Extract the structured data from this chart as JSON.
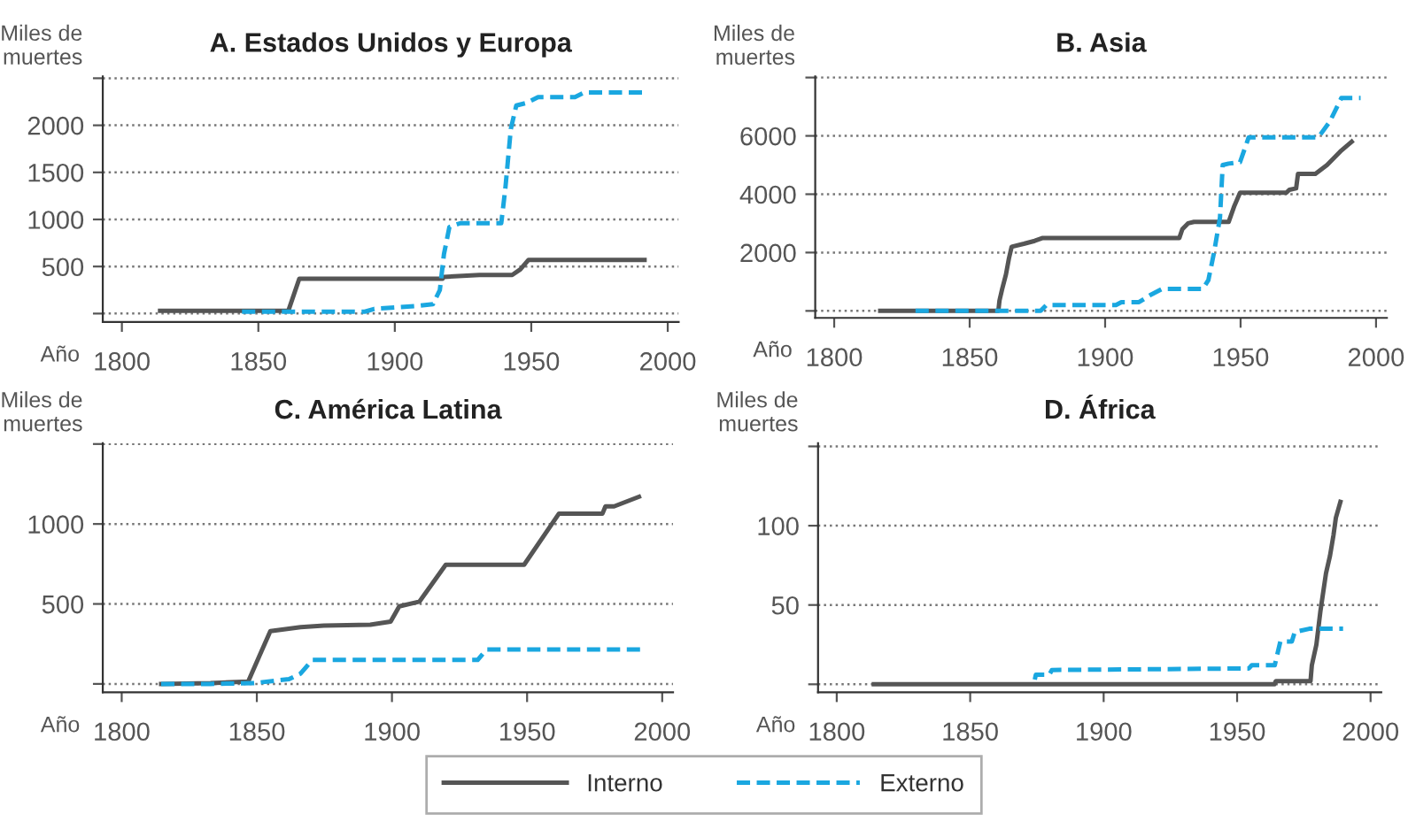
{
  "chart_data": [
    {
      "type": "line",
      "title": "A. Estados Unidos y Europa",
      "xlabel": "Año",
      "ylabel": "Miles de\nmuertes",
      "xlim": [
        1793,
        2004
      ],
      "xticks": [
        1800,
        1850,
        1900,
        1950,
        2000
      ],
      "ylim": [
        -90,
        2520
      ],
      "yticks": [
        {
          "value": 0,
          "label": null
        },
        500,
        1000,
        1500,
        2000,
        {
          "value": 2500,
          "label": null
        }
      ],
      "grid": "y",
      "legend": "bottom",
      "series": [
        {
          "name": "Interno",
          "color": "#555555",
          "line_style": "solid",
          "x": [
            1814,
            1861,
            1865,
            1917.5,
            1918,
            1931,
            1943,
            1946,
            1949,
            1991.5
          ],
          "values": [
            30,
            30,
            370,
            370,
            390,
            410,
            410,
            470,
            570,
            570
          ]
        },
        {
          "name": "Externo",
          "color": "#1aa7e0",
          "line_style": "dashed",
          "x": [
            1844,
            1889,
            1892.5,
            1908,
            1914,
            1916.5,
            1918,
            1920,
            1924,
            1939,
            1940.5,
            1942.5,
            1944.5,
            1948.5,
            1952.5,
            1966,
            1969.5,
            1991
          ],
          "values": [
            20,
            20,
            50,
            80,
            100,
            250,
            630,
            920,
            960,
            960,
            1330,
            1960,
            2210,
            2240,
            2300,
            2300,
            2350,
            2350
          ]
        }
      ]
    },
    {
      "type": "line",
      "title": "B. Asia",
      "xlabel": "Año",
      "ylabel": "Miles de\nmuertes",
      "xlim": [
        1793,
        2004
      ],
      "xticks": [
        1800,
        1850,
        1900,
        1950,
        2000
      ],
      "ylim": [
        -240,
        8040
      ],
      "yticks": [
        {
          "value": 0,
          "label": null
        },
        2000,
        4000,
        6000,
        {
          "value": 8000,
          "label": null
        }
      ],
      "grid": "y",
      "series": [
        {
          "color": "#555555",
          "line_style": "solid",
          "x": [
            1817,
            1860.6,
            1861,
            1862,
            1863.4,
            1864.5,
            1865.5,
            1870,
            1874,
            1877,
            1927.4,
            1928.5,
            1930.6,
            1932.8,
            1945.6,
            1947.7,
            1949.8,
            1966.9,
            1968,
            1970.5,
            1971.2,
            1977.6,
            1981.9,
            1987.2,
            1991
          ],
          "values": [
            0,
            0,
            350,
            750,
            1250,
            1800,
            2200,
            2300,
            2400,
            2500,
            2500,
            2800,
            3000,
            3050,
            3050,
            3600,
            4050,
            4050,
            4150,
            4200,
            4700,
            4700,
            5000,
            5500,
            5800
          ]
        },
        {
          "color": "#1aa7e0",
          "line_style": "dashed",
          "x": [
            1830,
            1876.2,
            1878.3,
            1904,
            1906,
            1912.5,
            1916.8,
            1921,
            1936,
            1938.1,
            1940.2,
            1942.4,
            1943.4,
            1945.6,
            1949.8,
            1953,
            1978.7,
            1983,
            1987.2,
            1994.3
          ],
          "values": [
            0,
            0,
            200,
            200,
            300,
            300,
            550,
            750,
            750,
            1050,
            2000,
            3200,
            5000,
            5050,
            5100,
            5950,
            5950,
            6500,
            7300,
            7300
          ]
        }
      ]
    },
    {
      "type": "line",
      "title": "C. América Latina",
      "xlabel": "Año",
      "ylabel": "Miles de\nmuertes",
      "xlim": [
        1793,
        2004
      ],
      "xticks": [
        1800,
        1850,
        1900,
        1950,
        2000
      ],
      "ylim": [
        -52,
        1505
      ],
      "yticks": [
        {
          "value": 0,
          "label": null
        },
        500,
        1000,
        {
          "value": 1500,
          "label": null
        }
      ],
      "grid": "y",
      "series": [
        {
          "color": "#555555",
          "line_style": "solid",
          "x": [
            1814.6,
            1832.9,
            1846.8,
            1851.1,
            1855,
            1866.2,
            1874.8,
            1892,
            1899.5,
            1902.7,
            1910.2,
            1919.9,
            1948.9,
            1961.8,
            1977.9,
            1979,
            1982.2,
            1991.4
          ],
          "values": [
            0,
            5,
            15,
            180,
            330,
            355,
            365,
            370,
            390,
            485,
            515,
            745,
            745,
            1065,
            1065,
            1110,
            1110,
            1170
          ]
        },
        {
          "color": "#1aa7e0",
          "line_style": "dashed",
          "x": [
            1814.6,
            1833,
            1849,
            1861.9,
            1866.2,
            1870.5,
            1931.7,
            1935,
            1994
          ],
          "values": [
            0,
            0,
            5,
            30,
            65,
            150,
            150,
            215,
            215
          ]
        }
      ]
    },
    {
      "type": "line",
      "title": "D. África",
      "xlabel": "Año",
      "ylabel": "Miles de\nmuertes",
      "xlim": [
        1793,
        2004
      ],
      "xticks": [
        1800,
        1850,
        1900,
        1950,
        2000
      ],
      "ylim": [
        -5,
        152
      ],
      "yticks": [
        {
          "value": 0,
          "label": null
        },
        50,
        100,
        {
          "value": 150,
          "label": null
        }
      ],
      "grid": "y",
      "series": [
        {
          "color": "#555555",
          "line_style": "solid",
          "x": [
            1813.9,
            1964,
            1964.5,
            1977.5,
            1978,
            1979.7,
            1981.2,
            1983.3,
            1984.8,
            1986.1,
            1987,
            1988.7
          ],
          "values": [
            0,
            0,
            2,
            2,
            12,
            25,
            46,
            70,
            81,
            94,
            105,
            115
          ]
        },
        {
          "color": "#1aa7e0",
          "line_style": "dashed",
          "x": [
            1874.2,
            1874.6,
            1879.6,
            1880.6,
            1954.4,
            1955.5,
            1964.1,
            1966.2,
            1970.5,
            1971.6,
            1977,
            1980.2,
            1989.7
          ],
          "values": [
            3,
            6,
            6,
            9,
            10,
            12,
            12,
            27,
            27,
            33,
            35,
            35,
            35
          ]
        }
      ]
    }
  ]
}
